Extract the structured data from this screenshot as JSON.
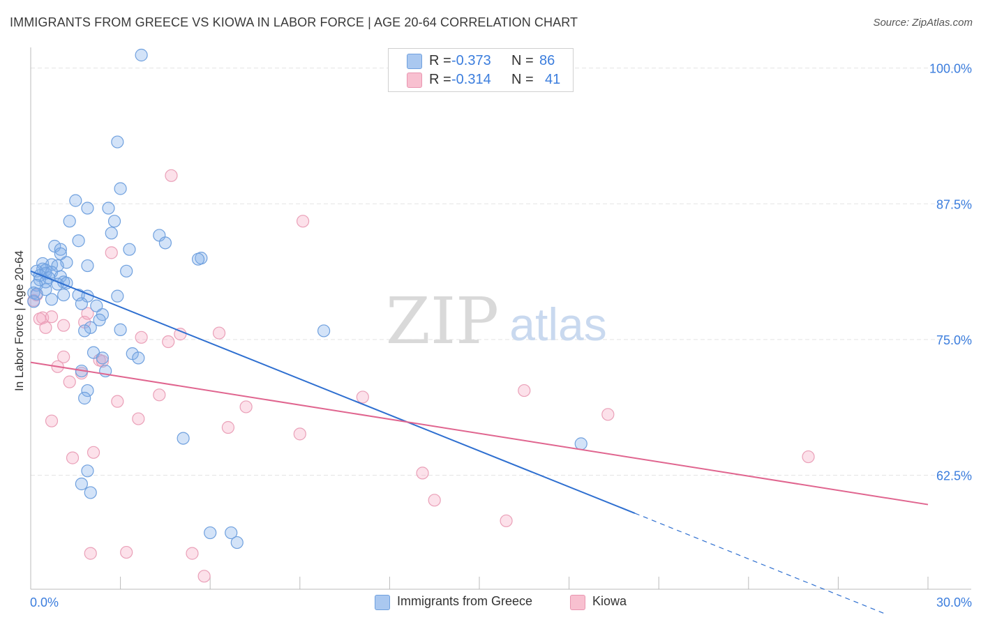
{
  "header": {
    "title": "IMMIGRANTS FROM GREECE VS KIOWA IN LABOR FORCE | AGE 20-64 CORRELATION CHART",
    "source": "Source: ZipAtlas.com"
  },
  "watermark": {
    "zip": "ZIP",
    "atlas": "atlas"
  },
  "legend": {
    "r_label": "R =",
    "n_label": "N =",
    "entries": [
      {
        "name": "Immigrants from Greece",
        "r": "-0.373",
        "n": "86",
        "fill": "#aac8f0",
        "stroke": "#6fa0de"
      },
      {
        "name": "Kiowa",
        "r": "-0.314",
        "n": "41",
        "fill": "#f8c0d0",
        "stroke": "#e995b0"
      }
    ]
  },
  "colors": {
    "blue_point_fill": "rgba(130,175,235,0.35)",
    "blue_point_stroke": "#6fa0de",
    "pink_point_fill": "rgba(245,170,195,0.35)",
    "pink_point_stroke": "#eaa0b8",
    "blue_line": "#2e6fd0",
    "pink_line": "#e0658f",
    "grid": "#e3e3e3",
    "tick_label": "#3b7ddd"
  },
  "chart_data": {
    "type": "scatter",
    "title": "IMMIGRANTS FROM GREECE VS KIOWA IN LABOR FORCE | AGE 20-64 CORRELATION CHART",
    "xlabel": "",
    "ylabel": "In Labor Force | Age 20-64",
    "xlim": [
      0,
      30
    ],
    "ylim": [
      52,
      101.2
    ],
    "x_tick_labels": [
      "0.0%",
      "30.0%"
    ],
    "y_ticks": [
      100,
      87.5,
      75,
      62.5
    ],
    "y_tick_labels": [
      "100.0%",
      "87.5%",
      "75.0%",
      "62.5%"
    ],
    "grid": true,
    "series": [
      {
        "name": "Immigrants from Greece",
        "r": -0.373,
        "n": 86,
        "trend": {
          "x0": 0.0,
          "y0": 81.3,
          "x1": 20.2,
          "y1": 59.0,
          "dash_x_end": 28.6,
          "dash_y_end": 49.7
        },
        "points": [
          [
            3.7,
            101.2
          ],
          [
            2.9,
            93.2
          ],
          [
            3.0,
            88.9
          ],
          [
            1.5,
            87.8
          ],
          [
            1.9,
            87.1
          ],
          [
            2.6,
            87.1
          ],
          [
            1.3,
            85.9
          ],
          [
            2.8,
            85.9
          ],
          [
            2.7,
            84.8
          ],
          [
            4.3,
            84.6
          ],
          [
            1.6,
            84.1
          ],
          [
            4.5,
            83.9
          ],
          [
            0.8,
            83.6
          ],
          [
            1.0,
            83.3
          ],
          [
            3.3,
            83.3
          ],
          [
            1.0,
            82.9
          ],
          [
            5.7,
            82.5
          ],
          [
            5.6,
            82.4
          ],
          [
            0.4,
            82.0
          ],
          [
            1.2,
            82.1
          ],
          [
            0.7,
            81.9
          ],
          [
            0.9,
            81.8
          ],
          [
            1.9,
            81.8
          ],
          [
            0.4,
            81.5
          ],
          [
            0.5,
            81.4
          ],
          [
            0.2,
            81.3
          ],
          [
            0.5,
            81.1
          ],
          [
            0.7,
            81.2
          ],
          [
            0.3,
            80.9
          ],
          [
            0.6,
            80.7
          ],
          [
            1.0,
            80.8
          ],
          [
            0.3,
            80.5
          ],
          [
            0.5,
            80.3
          ],
          [
            1.1,
            80.3
          ],
          [
            0.9,
            80.1
          ],
          [
            1.2,
            80.2
          ],
          [
            3.2,
            81.3
          ],
          [
            0.2,
            80.0
          ],
          [
            0.5,
            79.6
          ],
          [
            0.1,
            79.3
          ],
          [
            0.2,
            79.2
          ],
          [
            1.1,
            79.1
          ],
          [
            1.6,
            79.1
          ],
          [
            1.9,
            79.0
          ],
          [
            2.9,
            79.0
          ],
          [
            0.7,
            78.7
          ],
          [
            0.1,
            78.5
          ],
          [
            1.7,
            78.3
          ],
          [
            2.2,
            78.1
          ],
          [
            2.4,
            77.3
          ],
          [
            2.3,
            76.8
          ],
          [
            2.0,
            76.1
          ],
          [
            1.8,
            75.8
          ],
          [
            3.0,
            75.9
          ],
          [
            9.8,
            75.8
          ],
          [
            2.1,
            73.8
          ],
          [
            3.4,
            73.7
          ],
          [
            3.6,
            73.3
          ],
          [
            2.4,
            73.3
          ],
          [
            1.7,
            72.1
          ],
          [
            2.5,
            72.1
          ],
          [
            1.9,
            70.3
          ],
          [
            1.8,
            69.6
          ],
          [
            5.1,
            65.9
          ],
          [
            18.4,
            65.4
          ],
          [
            1.9,
            62.9
          ],
          [
            1.7,
            61.7
          ],
          [
            2.0,
            60.9
          ],
          [
            6.0,
            57.2
          ],
          [
            6.7,
            57.2
          ],
          [
            6.9,
            56.3
          ]
        ]
      },
      {
        "name": "Kiowa",
        "r": -0.314,
        "n": 41,
        "trend": {
          "x0": 0.0,
          "y0": 72.9,
          "x1": 30.0,
          "y1": 59.8
        },
        "points": [
          [
            4.7,
            90.1
          ],
          [
            9.1,
            85.9
          ],
          [
            2.7,
            83.0
          ],
          [
            0.2,
            79.1
          ],
          [
            0.1,
            78.6
          ],
          [
            0.4,
            77.0
          ],
          [
            0.7,
            77.1
          ],
          [
            0.3,
            76.9
          ],
          [
            1.1,
            76.3
          ],
          [
            1.8,
            76.6
          ],
          [
            1.9,
            77.4
          ],
          [
            0.5,
            76.1
          ],
          [
            5.0,
            75.5
          ],
          [
            6.3,
            75.6
          ],
          [
            3.7,
            75.2
          ],
          [
            4.6,
            74.8
          ],
          [
            1.1,
            73.4
          ],
          [
            2.3,
            73.1
          ],
          [
            2.4,
            73.0
          ],
          [
            0.9,
            72.5
          ],
          [
            1.7,
            71.9
          ],
          [
            1.3,
            71.1
          ],
          [
            4.3,
            69.9
          ],
          [
            2.9,
            69.3
          ],
          [
            11.1,
            69.7
          ],
          [
            16.5,
            70.3
          ],
          [
            7.2,
            68.8
          ],
          [
            3.6,
            67.7
          ],
          [
            0.7,
            67.5
          ],
          [
            19.3,
            68.1
          ],
          [
            6.6,
            66.9
          ],
          [
            9.0,
            66.3
          ],
          [
            2.1,
            64.6
          ],
          [
            1.4,
            64.1
          ],
          [
            26.0,
            64.2
          ],
          [
            13.1,
            62.7
          ],
          [
            13.5,
            60.2
          ],
          [
            15.9,
            58.3
          ],
          [
            2.0,
            55.3
          ],
          [
            3.2,
            55.4
          ],
          [
            5.4,
            55.3
          ],
          [
            5.8,
            53.2
          ]
        ]
      }
    ]
  }
}
